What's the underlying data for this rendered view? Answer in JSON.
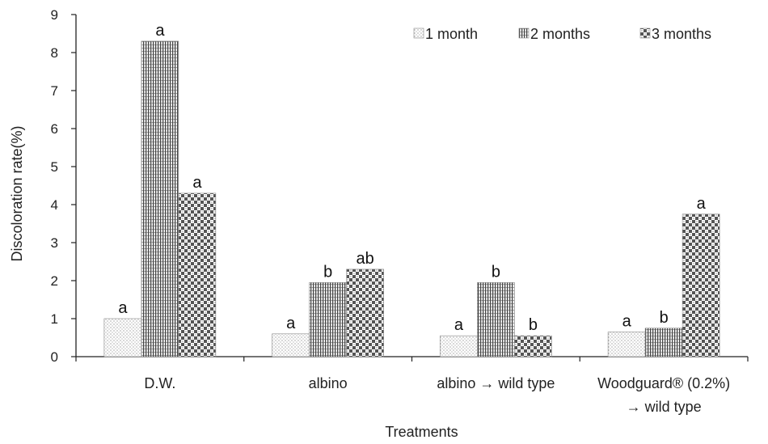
{
  "chart_data": {
    "type": "bar",
    "xlabel": "Treatments",
    "ylabel": "Discoloration rate(%)",
    "ylim": [
      0,
      9
    ],
    "yticks": [
      0,
      1,
      2,
      3,
      4,
      5,
      6,
      7,
      8,
      9
    ],
    "grid": false,
    "legend_position": "top-right",
    "categories": [
      {
        "line1": "D.W.",
        "line2": ""
      },
      {
        "line1": "albino",
        "line2": ""
      },
      {
        "line1": "albino → wild type",
        "line2": ""
      },
      {
        "line1": "Woodguard® (0.2%)",
        "line2": "→ wild type"
      }
    ],
    "series": [
      {
        "name": "1 month",
        "values": [
          1.0,
          0.6,
          0.55,
          0.65
        ],
        "labels": [
          "a",
          "a",
          "a",
          "a"
        ],
        "pattern": "dots"
      },
      {
        "name": "2 months",
        "values": [
          8.3,
          1.95,
          1.95,
          0.75
        ],
        "labels": [
          "a",
          "b",
          "b",
          "b"
        ],
        "pattern": "vstripes"
      },
      {
        "name": "3 months",
        "values": [
          4.3,
          2.3,
          0.55,
          3.75
        ],
        "labels": [
          "a",
          "ab",
          "b",
          "a"
        ],
        "pattern": "checker"
      }
    ]
  }
}
